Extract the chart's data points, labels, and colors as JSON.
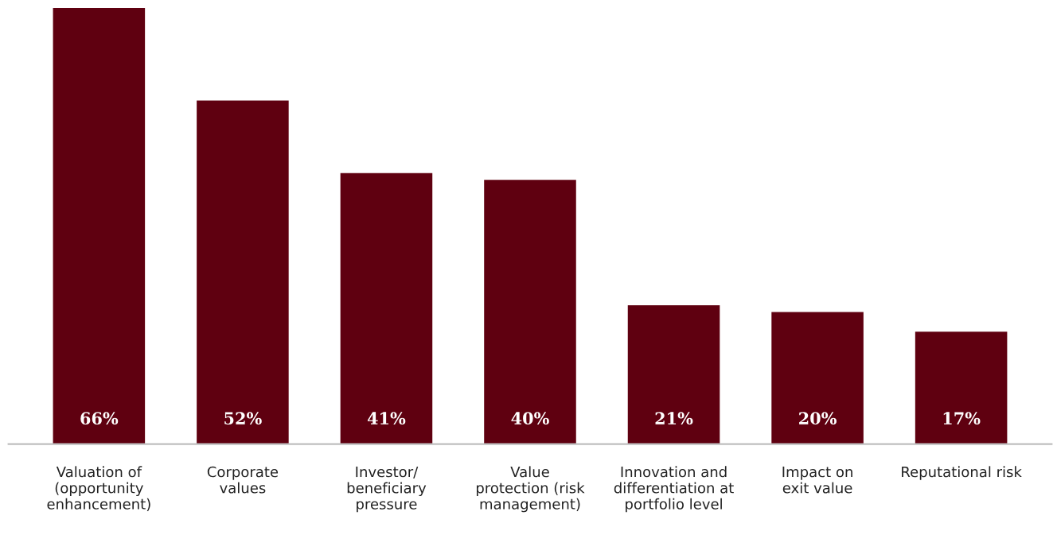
{
  "chart_data": {
    "type": "bar",
    "categories": [
      "Valuation of\n(opportunity\nenhancement)",
      "Corporate\nvalues",
      "Investor/\nbeneficiary\npressure",
      "Value\nprotection (risk\nmanagement)",
      "Innovation and\ndifferentiation at\nportfolio level",
      "Impact on\nexit value",
      "Reputational risk"
    ],
    "values": [
      66,
      52,
      41,
      40,
      21,
      20,
      17
    ],
    "color": "#5f0010",
    "data_labels": true,
    "value_labels": [
      "66%",
      "52%",
      "41%",
      "40%",
      "21%",
      "20%",
      "17%"
    ],
    "grid": false,
    "legend": false
  }
}
